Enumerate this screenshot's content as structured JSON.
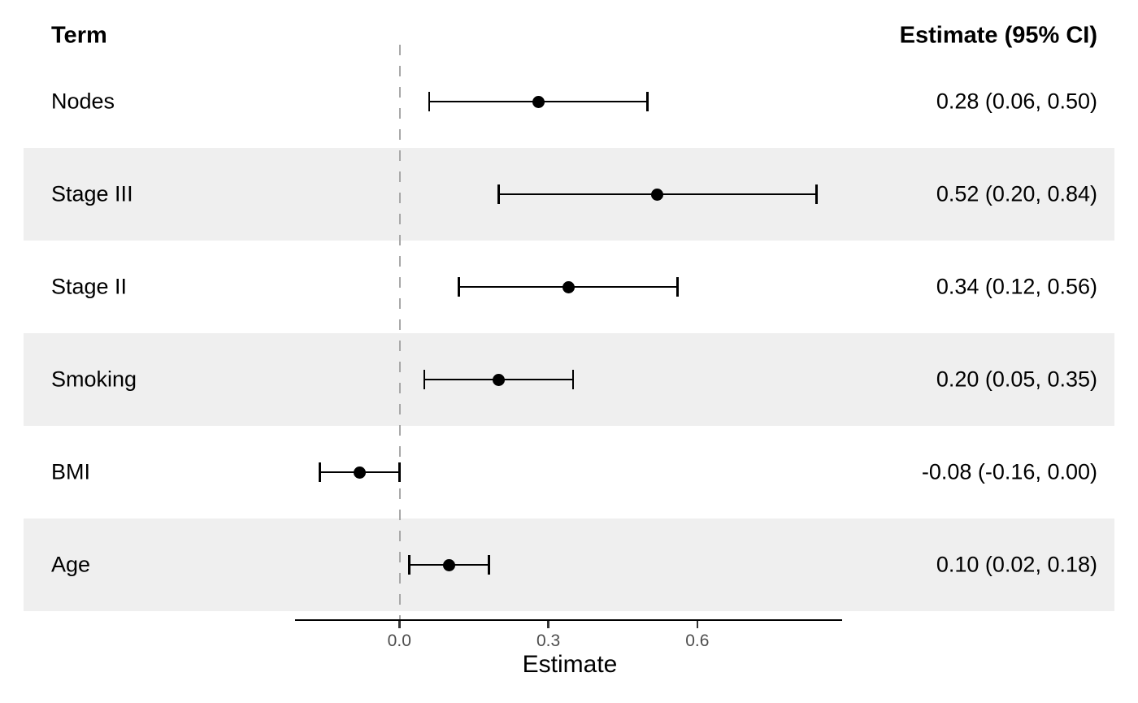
{
  "chart_data": {
    "type": "scatter",
    "subtype": "forest-plot",
    "left_column_header": "Term",
    "right_column_header": "Estimate (95% CI)",
    "xlabel": "Estimate",
    "rows": [
      {
        "term": "Nodes",
        "estimate": 0.28,
        "ci_low": 0.06,
        "ci_high": 0.5,
        "label": "0.28 (0.06, 0.50)",
        "shaded": false
      },
      {
        "term": "Stage III",
        "estimate": 0.52,
        "ci_low": 0.2,
        "ci_high": 0.84,
        "label": "0.52 (0.20, 0.84)",
        "shaded": true
      },
      {
        "term": "Stage II",
        "estimate": 0.34,
        "ci_low": 0.12,
        "ci_high": 0.56,
        "label": "0.34 (0.12, 0.56)",
        "shaded": false
      },
      {
        "term": "Smoking",
        "estimate": 0.2,
        "ci_low": 0.05,
        "ci_high": 0.35,
        "label": "0.20 (0.05, 0.35)",
        "shaded": true
      },
      {
        "term": "BMI",
        "estimate": -0.08,
        "ci_low": -0.16,
        "ci_high": 0.0,
        "label": "-0.08 (-0.16, 0.00)",
        "shaded": false
      },
      {
        "term": "Age",
        "estimate": 0.1,
        "ci_low": 0.02,
        "ci_high": 0.18,
        "label": "0.10 (0.02, 0.18)",
        "shaded": true
      }
    ],
    "x_ticks": {
      "values": [
        0,
        0.3,
        0.6
      ],
      "labels": [
        "0.0",
        "0.3",
        "0.6"
      ]
    },
    "x_range": [
      -0.21,
      0.89
    ],
    "reference_line_x": 0,
    "grid": false,
    "legend": "none",
    "row_striping": "alternating"
  },
  "colors": {
    "stripe": "#EFEFEF",
    "point": "#000000",
    "ci_line": "#000000",
    "reference_line": "#A8A8A8",
    "axis_line": "#000000",
    "tick_mark": "#333333",
    "tick_label": "#4D4D4D",
    "text": "#000000"
  }
}
